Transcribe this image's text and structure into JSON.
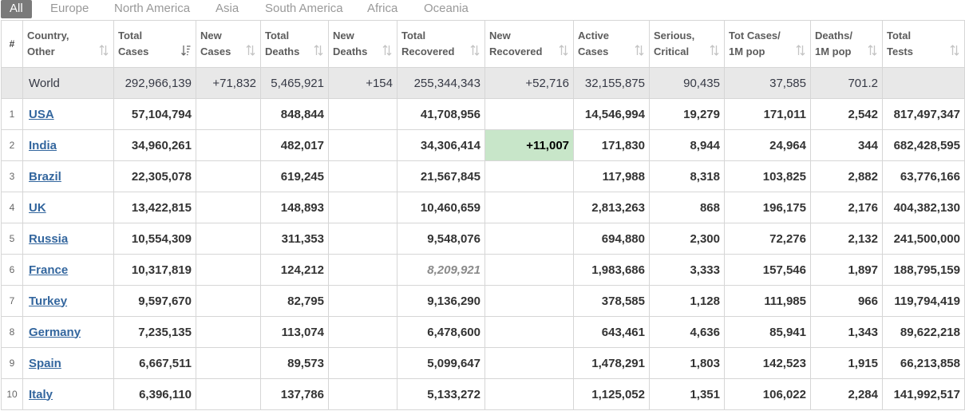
{
  "tabs": [
    {
      "label": "All",
      "active": true
    },
    {
      "label": "Europe"
    },
    {
      "label": "North America"
    },
    {
      "label": "Asia"
    },
    {
      "label": "South America"
    },
    {
      "label": "Africa"
    },
    {
      "label": "Oceania"
    }
  ],
  "columns": [
    {
      "l1": "#",
      "l2": ""
    },
    {
      "l1": "Country,",
      "l2": "Other"
    },
    {
      "l1": "Total",
      "l2": "Cases"
    },
    {
      "l1": "New",
      "l2": "Cases"
    },
    {
      "l1": "Total",
      "l2": "Deaths"
    },
    {
      "l1": "New",
      "l2": "Deaths"
    },
    {
      "l1": "Total",
      "l2": "Recovered"
    },
    {
      "l1": "New",
      "l2": "Recovered"
    },
    {
      "l1": "Active",
      "l2": "Cases"
    },
    {
      "l1": "Serious,",
      "l2": "Critical"
    },
    {
      "l1": "Tot Cases/",
      "l2": "1M pop"
    },
    {
      "l1": "Deaths/",
      "l2": "1M pop"
    },
    {
      "l1": "Total",
      "l2": "Tests"
    }
  ],
  "world": {
    "country": "World",
    "cells": [
      "292,966,139",
      "+71,832",
      "5,465,921",
      "+154",
      "255,344,343",
      "+52,716",
      "32,155,875",
      "90,435",
      "37,585",
      "701.2",
      ""
    ]
  },
  "rows": [
    {
      "idx": "1",
      "country": "USA",
      "cells": [
        "57,104,794",
        "",
        "848,844",
        "",
        "41,708,956",
        "",
        "14,546,994",
        "19,279",
        "171,011",
        "2,542",
        "817,497,347"
      ]
    },
    {
      "idx": "2",
      "country": "India",
      "cells": [
        "34,960,261",
        "",
        "482,017",
        "",
        "34,306,414",
        "+11,007",
        "171,830",
        "8,944",
        "24,964",
        "344",
        "682,428,595"
      ]
    },
    {
      "idx": "3",
      "country": "Brazil",
      "cells": [
        "22,305,078",
        "",
        "619,245",
        "",
        "21,567,845",
        "",
        "117,988",
        "8,318",
        "103,825",
        "2,882",
        "63,776,166"
      ]
    },
    {
      "idx": "4",
      "country": "UK",
      "cells": [
        "13,422,815",
        "",
        "148,893",
        "",
        "10,460,659",
        "",
        "2,813,263",
        "868",
        "196,175",
        "2,176",
        "404,382,130"
      ]
    },
    {
      "idx": "5",
      "country": "Russia",
      "cells": [
        "10,554,309",
        "",
        "311,353",
        "",
        "9,548,076",
        "",
        "694,880",
        "2,300",
        "72,276",
        "2,132",
        "241,500,000"
      ]
    },
    {
      "idx": "6",
      "country": "France",
      "cells": [
        "10,317,819",
        "",
        "124,212",
        "",
        "8,209,921",
        "",
        "1,983,686",
        "3,333",
        "157,546",
        "1,897",
        "188,795,159"
      ]
    },
    {
      "idx": "7",
      "country": "Turkey",
      "cells": [
        "9,597,670",
        "",
        "82,795",
        "",
        "9,136,290",
        "",
        "378,585",
        "1,128",
        "111,985",
        "966",
        "119,794,419"
      ]
    },
    {
      "idx": "8",
      "country": "Germany",
      "cells": [
        "7,235,135",
        "",
        "113,074",
        "",
        "6,478,600",
        "",
        "643,461",
        "4,636",
        "85,941",
        "1,343",
        "89,622,218"
      ]
    },
    {
      "idx": "9",
      "country": "Spain",
      "cells": [
        "6,667,511",
        "",
        "89,573",
        "",
        "5,099,647",
        "",
        "1,478,291",
        "1,803",
        "142,523",
        "1,915",
        "66,213,858"
      ]
    },
    {
      "idx": "10",
      "country": "Italy",
      "cells": [
        "6,396,110",
        "",
        "137,786",
        "",
        "5,133,272",
        "",
        "1,125,052",
        "1,351",
        "106,022",
        "2,284",
        "141,992,517"
      ]
    }
  ],
  "colors": {
    "tab_active_bg": "#7a7a7a",
    "link": "#33669e",
    "world_row_bg": "#e8e8e8",
    "new_recovered_highlight": "#c8e6c9"
  },
  "icons": {
    "sort": "sort-arrows-icon",
    "sort_active": "sort-desc-icon"
  }
}
